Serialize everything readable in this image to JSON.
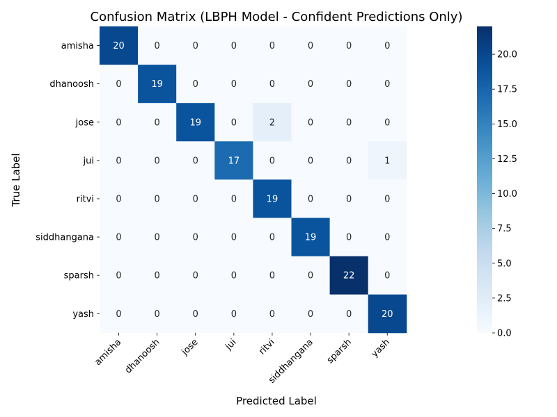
{
  "chart_data": {
    "type": "heatmap",
    "title": "Confusion Matrix (LBPH Model - Confident Predictions Only)",
    "xlabel": "Predicted Label",
    "ylabel": "True Label",
    "x_categories": [
      "amisha",
      "dhanoosh",
      "jose",
      "jui",
      "ritvi",
      "siddhangana",
      "sparsh",
      "yash"
    ],
    "y_categories": [
      "amisha",
      "dhanoosh",
      "jose",
      "jui",
      "ritvi",
      "siddhangana",
      "sparsh",
      "yash"
    ],
    "values": [
      [
        20,
        0,
        0,
        0,
        0,
        0,
        0,
        0
      ],
      [
        0,
        19,
        0,
        0,
        0,
        0,
        0,
        0
      ],
      [
        0,
        0,
        19,
        0,
        2,
        0,
        0,
        0
      ],
      [
        0,
        0,
        0,
        17,
        0,
        0,
        0,
        1
      ],
      [
        0,
        0,
        0,
        0,
        19,
        0,
        0,
        0
      ],
      [
        0,
        0,
        0,
        0,
        0,
        19,
        0,
        0
      ],
      [
        0,
        0,
        0,
        0,
        0,
        0,
        22,
        0
      ],
      [
        0,
        0,
        0,
        0,
        0,
        0,
        0,
        20
      ]
    ],
    "colormap": "Blues",
    "vmin": 0,
    "vmax": 22,
    "colorbar_ticks": [
      "0.0",
      "2.5",
      "5.0",
      "7.5",
      "10.0",
      "12.5",
      "15.0",
      "17.5",
      "20.0"
    ]
  }
}
